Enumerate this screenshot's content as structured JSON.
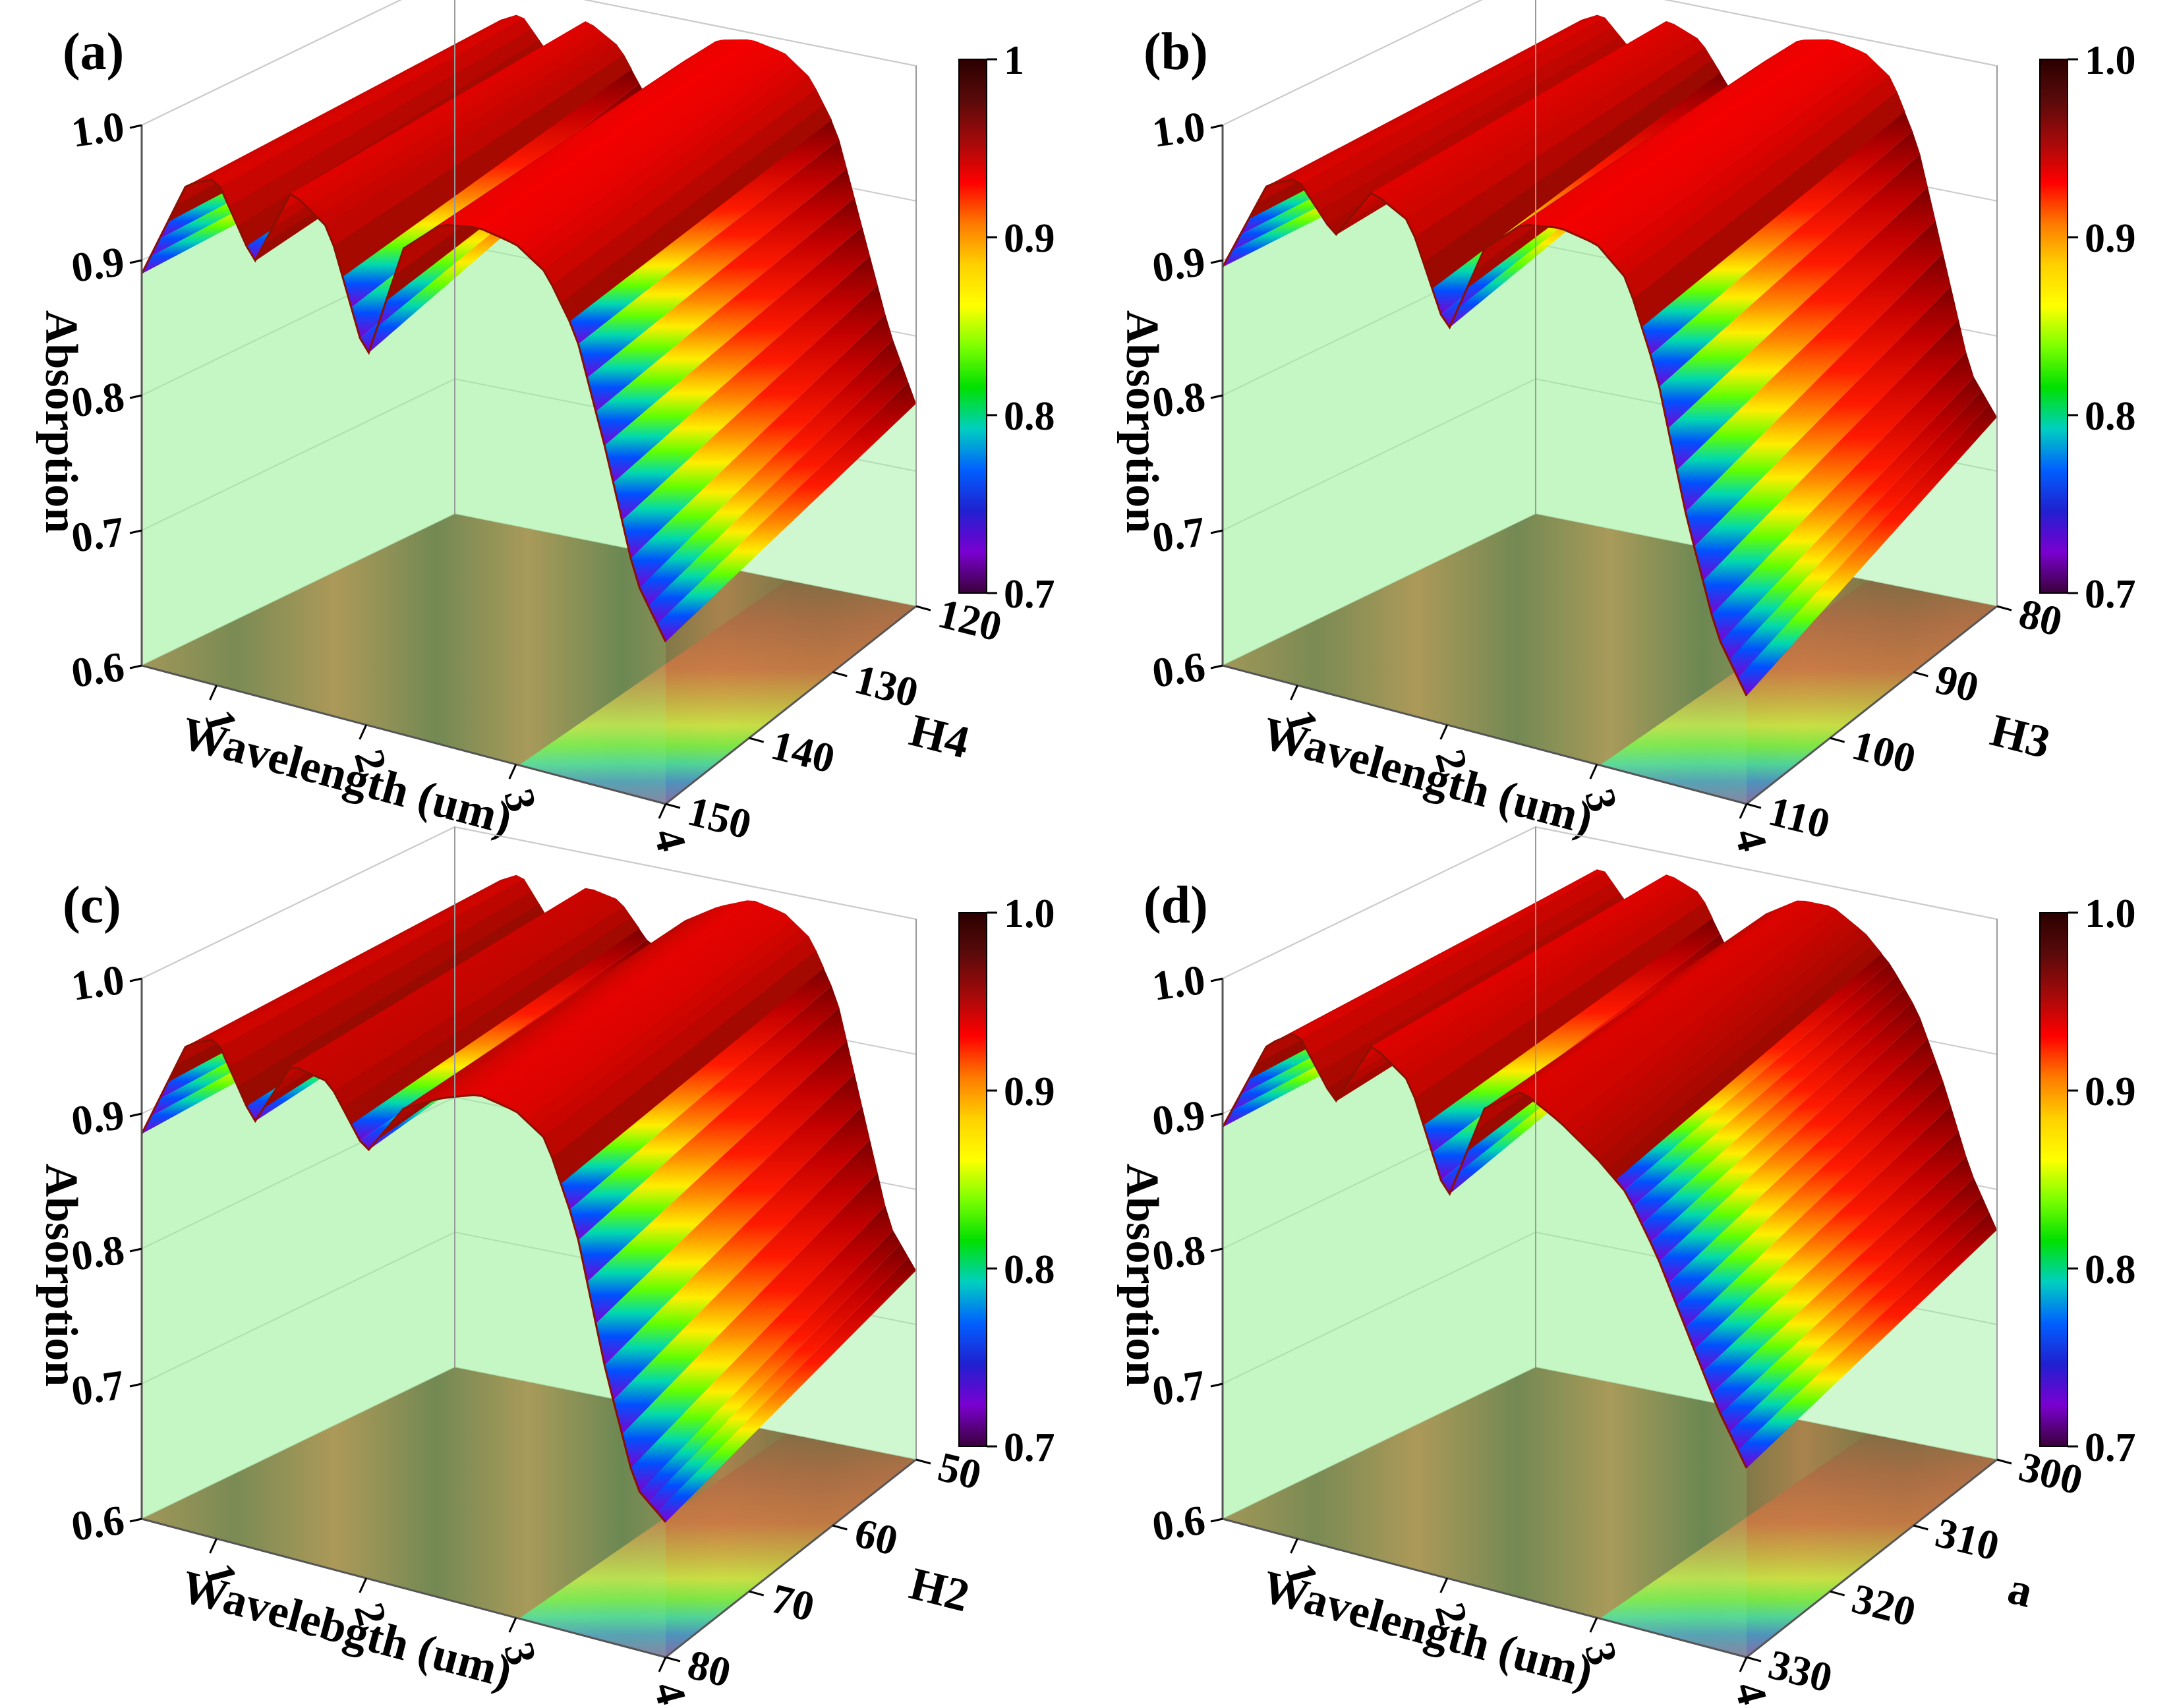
{
  "colormap": [
    "#2b0000",
    "#5a0a0a",
    "#a30a0a",
    "#ff0000",
    "#ff7a00",
    "#ffd000",
    "#ffff00",
    "#7cff00",
    "#00e000",
    "#00d0c0",
    "#0060ff",
    "#2020d0",
    "#7a00d0",
    "#3a003a"
  ],
  "chart_data": [
    {
      "type": "surface3d",
      "panel_label": "(a)",
      "xlabel": "Wavelength (um)",
      "ylabel": "H4",
      "zlabel": "Absorption",
      "x_ticks": [
        "1",
        "2",
        "3",
        "4"
      ],
      "y_ticks": [
        "120",
        "130",
        "140",
        "150"
      ],
      "z_ticks": [
        "0.6",
        "0.7",
        "0.8",
        "0.9",
        "1.0"
      ],
      "colorbar_ticks": [
        "1",
        "0.9",
        "0.8",
        "0.7"
      ],
      "xlim": [
        0.5,
        4
      ],
      "ylim": [
        120,
        150
      ],
      "zlim": [
        0.6,
        1.0
      ],
      "colorbar_range": [
        0.7,
        1.0
      ],
      "front_profile": {
        "x": [
          0.5,
          0.8,
          1.0,
          1.25,
          1.5,
          1.75,
          2.0,
          2.25,
          2.5,
          2.75,
          3.0,
          3.2,
          3.4,
          3.6,
          3.8,
          4.0
        ],
        "z": [
          0.89,
          0.965,
          0.975,
          0.92,
          0.98,
          0.96,
          0.87,
          0.96,
          0.985,
          0.99,
          0.985,
          0.97,
          0.93,
          0.85,
          0.76,
          0.72
        ]
      },
      "back_profile": {
        "x": [
          0.5,
          0.8,
          1.0,
          1.25,
          1.5,
          1.75,
          2.0,
          2.25,
          2.5,
          2.75,
          3.0,
          3.2,
          3.4,
          3.6,
          3.8,
          4.0
        ],
        "z": [
          0.9,
          0.97,
          0.98,
          0.95,
          0.985,
          0.97,
          0.93,
          0.97,
          0.99,
          0.995,
          0.99,
          0.975,
          0.94,
          0.87,
          0.8,
          0.75
        ]
      }
    },
    {
      "type": "surface3d",
      "panel_label": "(b)",
      "xlabel": "Wavelength (um)",
      "ylabel": "H3",
      "zlabel": "Absorption",
      "x_ticks": [
        "1",
        "2",
        "3",
        "4"
      ],
      "y_ticks": [
        "80",
        "90",
        "100",
        "110"
      ],
      "z_ticks": [
        "0.6",
        "0.7",
        "0.8",
        "0.9",
        "1.0"
      ],
      "colorbar_ticks": [
        "1.0",
        "0.9",
        "0.8",
        "0.7"
      ],
      "xlim": [
        0.5,
        4
      ],
      "ylim": [
        80,
        110
      ],
      "zlim": [
        0.6,
        1.0
      ],
      "colorbar_range": [
        0.7,
        1.0
      ],
      "front_profile": {
        "x": [
          0.5,
          0.8,
          1.0,
          1.25,
          1.5,
          1.75,
          2.0,
          2.25,
          2.5,
          2.75,
          3.0,
          3.2,
          3.4,
          3.6,
          3.8,
          4.0
        ],
        "z": [
          0.895,
          0.965,
          0.975,
          0.94,
          0.98,
          0.965,
          0.89,
          0.96,
          0.985,
          0.99,
          0.985,
          0.965,
          0.9,
          0.8,
          0.72,
          0.68
        ]
      },
      "back_profile": {
        "x": [
          0.5,
          0.8,
          1.0,
          1.25,
          1.5,
          1.75,
          2.0,
          2.25,
          2.5,
          2.75,
          3.0,
          3.2,
          3.4,
          3.6,
          3.8,
          4.0
        ],
        "z": [
          0.9,
          0.97,
          0.98,
          0.955,
          0.985,
          0.975,
          0.94,
          0.97,
          0.99,
          0.995,
          0.99,
          0.975,
          0.93,
          0.85,
          0.77,
          0.74
        ]
      }
    },
    {
      "type": "surface3d",
      "panel_label": "(c)",
      "xlabel": "Wavelebgth (um)",
      "ylabel": "H2",
      "zlabel": "Absorption",
      "x_ticks": [
        "1",
        "2",
        "3",
        "4"
      ],
      "y_ticks": [
        "50",
        "60",
        "70",
        "80"
      ],
      "z_ticks": [
        "0.6",
        "0.7",
        "0.8",
        "0.9",
        "1.0"
      ],
      "colorbar_ticks": [
        "1.0",
        "0.9",
        "0.8",
        "0.7"
      ],
      "xlim": [
        0.5,
        4
      ],
      "ylim": [
        50,
        80
      ],
      "zlim": [
        0.6,
        1.0
      ],
      "colorbar_range": [
        0.7,
        1.0
      ],
      "front_profile": {
        "x": [
          0.5,
          0.8,
          1.0,
          1.25,
          1.5,
          1.75,
          2.0,
          2.25,
          2.5,
          2.75,
          3.0,
          3.2,
          3.4,
          3.6,
          3.8,
          4.0
        ],
        "z": [
          0.885,
          0.96,
          0.97,
          0.915,
          0.965,
          0.96,
          0.915,
          0.955,
          0.97,
          0.98,
          0.975,
          0.96,
          0.9,
          0.8,
          0.72,
          0.7
        ]
      },
      "back_profile": {
        "x": [
          0.5,
          0.8,
          1.0,
          1.25,
          1.5,
          1.75,
          2.0,
          2.25,
          2.5,
          2.75,
          3.0,
          3.2,
          3.4,
          3.6,
          3.8,
          4.0
        ],
        "z": [
          0.9,
          0.965,
          0.975,
          0.94,
          0.975,
          0.97,
          0.94,
          0.965,
          0.98,
          0.99,
          0.985,
          0.97,
          0.93,
          0.85,
          0.77,
          0.74
        ]
      }
    },
    {
      "type": "surface3d",
      "panel_label": "(d)",
      "xlabel": "Wavelength (um)",
      "ylabel": "a",
      "zlabel": "Absorption",
      "x_ticks": [
        "1",
        "2",
        "3",
        "4"
      ],
      "y_ticks": [
        "300",
        "310",
        "320",
        "330"
      ],
      "z_ticks": [
        "0.6",
        "0.7",
        "0.8",
        "0.9",
        "1.0"
      ],
      "colorbar_ticks": [
        "1.0",
        "0.9",
        "0.8",
        "0.7"
      ],
      "xlim": [
        0.5,
        4
      ],
      "ylim": [
        300,
        330
      ],
      "zlim": [
        0.6,
        1.0
      ],
      "colorbar_range": [
        0.7,
        1.0
      ],
      "front_profile": {
        "x": [
          0.5,
          0.8,
          1.0,
          1.25,
          1.5,
          1.75,
          2.0,
          2.25,
          2.5,
          2.75,
          3.0,
          3.2,
          3.4,
          3.6,
          3.8,
          4.0
        ],
        "z": [
          0.89,
          0.96,
          0.975,
          0.93,
          0.98,
          0.96,
          0.88,
          0.955,
          0.975,
          0.96,
          0.94,
          0.92,
          0.88,
          0.83,
          0.78,
          0.74
        ]
      },
      "back_profile": {
        "x": [
          0.5,
          0.8,
          1.0,
          1.25,
          1.5,
          1.75,
          2.0,
          2.25,
          2.5,
          2.75,
          3.0,
          3.2,
          3.4,
          3.6,
          3.8,
          4.0
        ],
        "z": [
          0.9,
          0.965,
          0.98,
          0.95,
          0.985,
          0.975,
          0.93,
          0.97,
          0.985,
          0.985,
          0.97,
          0.95,
          0.92,
          0.87,
          0.81,
          0.77
        ]
      }
    }
  ]
}
